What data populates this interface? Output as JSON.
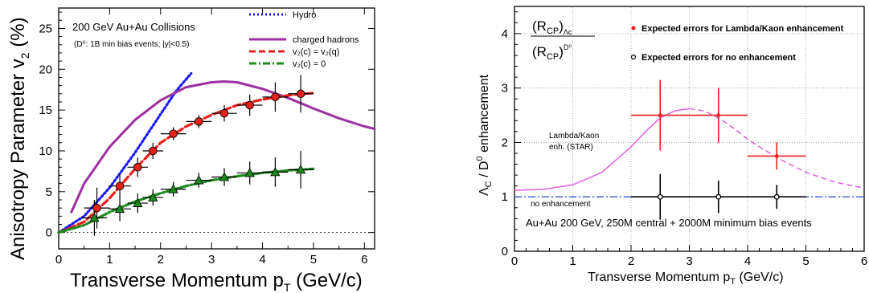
{
  "chart_data": [
    {
      "type": "scatter",
      "title": "200 GeV Au+Au Collisions",
      "subtitle": "(D⁰: 1B min bias events; |y|<0.5)",
      "xlabel": "Transverse Momentum p",
      "xlabel_sub": "T",
      "xlabel_unit": " (GeV/c)",
      "ylabel": "Anisotropy Parameter v",
      "ylabel_sub": "2",
      "ylabel_unit": " (%)",
      "xlim": [
        0,
        6.2
      ],
      "ylim": [
        -2,
        27.5
      ],
      "xticks": [
        0,
        1,
        2,
        3,
        4,
        5,
        6
      ],
      "yticks": [
        0,
        5,
        10,
        15,
        20,
        25
      ],
      "grid": false,
      "legend_position": "top-right",
      "colors": {
        "hydro": "#1a1aff",
        "charged": "#9b2fa0",
        "red": "#e8201c",
        "green": "#1d8a1d"
      },
      "series": [
        {
          "name": "Hydro",
          "style": "dotted",
          "x": [
            0.0,
            0.5,
            1.0,
            1.5,
            2.0,
            2.3,
            2.6
          ],
          "y": [
            0.0,
            2.0,
            5.5,
            9.8,
            14.5,
            17.3,
            19.5
          ]
        },
        {
          "name": "charged hadrons",
          "style": "solid",
          "x": [
            0.25,
            0.5,
            1.0,
            1.5,
            2.0,
            2.5,
            3.0,
            3.25,
            3.5,
            4.0,
            4.5,
            5.0,
            5.5,
            6.0,
            6.2
          ],
          "y": [
            2.5,
            6.0,
            10.5,
            13.8,
            16.2,
            17.8,
            18.4,
            18.5,
            18.4,
            17.6,
            16.5,
            15.2,
            14.0,
            13.0,
            12.7
          ]
        },
        {
          "name": "v₂(c) = v₂(q)",
          "style": "dashed",
          "x": [
            0.0,
            0.5,
            1.0,
            1.5,
            2.0,
            2.5,
            3.0,
            3.5,
            4.0,
            4.5,
            5.0
          ],
          "y": [
            0.0,
            1.3,
            4.2,
            7.8,
            11.0,
            13.0,
            14.4,
            15.6,
            16.3,
            16.8,
            17.1
          ]
        },
        {
          "name": "v₂(c) = 0",
          "style": "dashdot",
          "x": [
            0.0,
            0.5,
            1.0,
            1.5,
            2.0,
            2.5,
            3.0,
            3.5,
            4.0,
            4.5,
            5.0
          ],
          "y": [
            0.0,
            0.9,
            2.5,
            3.8,
            4.8,
            5.7,
            6.4,
            6.9,
            7.3,
            7.6,
            7.8
          ]
        },
        {
          "name": "red points",
          "marker": "circle",
          "x": [
            0.75,
            1.2,
            1.55,
            1.85,
            2.25,
            2.75,
            3.25,
            3.75,
            4.25,
            4.75
          ],
          "y": [
            3.0,
            5.7,
            8.0,
            10.0,
            12.1,
            13.6,
            14.6,
            15.6,
            16.6,
            17.0
          ],
          "yerr": [
            2.5,
            1.5,
            1.2,
            1.0,
            0.8,
            0.8,
            1.0,
            1.3,
            1.8,
            2.3
          ],
          "xerr": [
            0.25,
            0.22,
            0.2,
            0.2,
            0.25,
            0.25,
            0.25,
            0.25,
            0.25,
            0.25
          ]
        },
        {
          "name": "green points",
          "marker": "triangle",
          "x": [
            0.7,
            1.2,
            1.55,
            1.85,
            2.25,
            2.75,
            3.25,
            3.75,
            4.25,
            4.75
          ],
          "y": [
            1.8,
            2.9,
            3.6,
            4.3,
            5.3,
            6.4,
            6.8,
            7.3,
            7.4,
            7.7
          ],
          "yerr": [
            2.2,
            1.5,
            1.2,
            1.0,
            0.9,
            0.9,
            1.1,
            1.4,
            1.8,
            2.3
          ],
          "xerr": [
            0.25,
            0.22,
            0.2,
            0.2,
            0.25,
            0.25,
            0.25,
            0.25,
            0.25,
            0.25
          ]
        }
      ]
    },
    {
      "type": "scatter",
      "title_top": "(R",
      "title_top_sub": "CP",
      "title_top_rest": ")",
      "title_top_sub2": "Λc",
      "title_bottom": "(R",
      "title_bottom_sub": "CP",
      "title_bottom_rest": ")",
      "title_bottom_sub2": "D⁰",
      "xlabel": "Transverse Momentum p",
      "xlabel_sub": "T",
      "xlabel_unit": " (GeV/c)",
      "ylabel": "Λ",
      "ylabel_sub": "C",
      "ylabel_mid": " / D",
      "ylabel_sup": "0",
      "ylabel_unit": " enhancement",
      "xlim": [
        0,
        6
      ],
      "ylim": [
        0,
        4.5
      ],
      "xticks": [
        0,
        1,
        2,
        3,
        4,
        5,
        6
      ],
      "yticks": [
        0,
        1,
        2,
        3,
        4
      ],
      "grid": true,
      "legend_position": "top-right",
      "legend": [
        {
          "label": "Expected errors for Lambda/Kaon enhancement",
          "color": "#e8201c",
          "marker": "dot"
        },
        {
          "label": "Expected errors for no enhancement",
          "color": "#000000",
          "marker": "open-circle"
        }
      ],
      "annotations": {
        "lambda_kaon_1": "Lambda/Kaon",
        "lambda_kaon_2": "enh. (STAR)",
        "no_enhancement": "no enhancement",
        "caption": "Au+Au 200 GeV, 250M central + 2000M minimum bias events"
      },
      "colors": {
        "curve": "#e060e0",
        "red": "#e8201c",
        "baseline": "#3a5acc"
      },
      "series": [
        {
          "name": "Lambda/Kaon enh. curve",
          "style": "solid-then-dashed",
          "x": [
            0.0,
            0.5,
            1.0,
            1.5,
            2.0,
            2.25,
            2.5,
            2.75,
            3.0,
            3.25,
            3.5,
            3.75,
            4.0,
            4.5,
            5.0,
            5.5,
            6.0
          ],
          "y": [
            1.12,
            1.14,
            1.22,
            1.45,
            1.92,
            2.2,
            2.45,
            2.58,
            2.62,
            2.58,
            2.45,
            2.27,
            2.06,
            1.72,
            1.45,
            1.27,
            1.16
          ],
          "dashed_from_x": 3.0
        },
        {
          "name": "no enhancement baseline",
          "style": "dashdot",
          "x": [
            0,
            6
          ],
          "y": [
            1.0,
            1.0
          ]
        },
        {
          "name": "Expected errors for Lambda/Kaon enhancement",
          "x": [
            2.5,
            3.5,
            4.5
          ],
          "y": [
            2.5,
            2.5,
            1.75
          ],
          "yerr": [
            0.65,
            0.5,
            0.25
          ],
          "xerr": [
            0.5,
            0.5,
            0.5
          ]
        },
        {
          "name": "Expected errors for no enhancement",
          "x": [
            2.5,
            3.5,
            4.5
          ],
          "y": [
            1.0,
            1.0,
            1.0
          ],
          "yerr": [
            0.42,
            0.3,
            0.22
          ],
          "xerr": [
            0.5,
            0.5,
            0.5
          ]
        }
      ]
    }
  ]
}
